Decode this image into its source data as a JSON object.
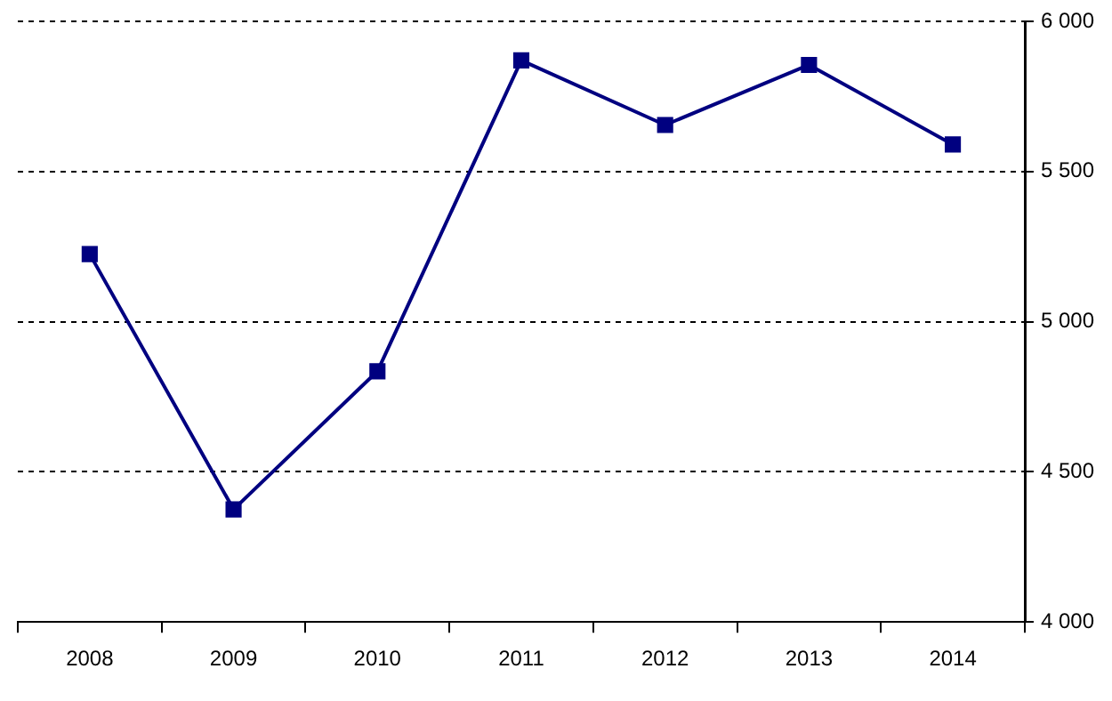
{
  "chart_data": {
    "type": "line",
    "categories": [
      "2008",
      "2009",
      "2010",
      "2011",
      "2012",
      "2013",
      "2014"
    ],
    "series": [
      {
        "color": "#000080",
        "values": [
          5225,
          4375,
          4835,
          5870,
          5655,
          5855,
          5590
        ]
      }
    ],
    "ylim": [
      4000,
      6000
    ],
    "yticks": [
      {
        "value": 4000,
        "label": "4 000"
      },
      {
        "value": 4500,
        "label": "4 500"
      },
      {
        "value": 5000,
        "label": "5 000"
      },
      {
        "value": 5500,
        "label": "5 500"
      },
      {
        "value": 6000,
        "label": "6 000"
      }
    ],
    "grid": "y",
    "legend": false,
    "marker": "square",
    "line_style": "solid"
  }
}
